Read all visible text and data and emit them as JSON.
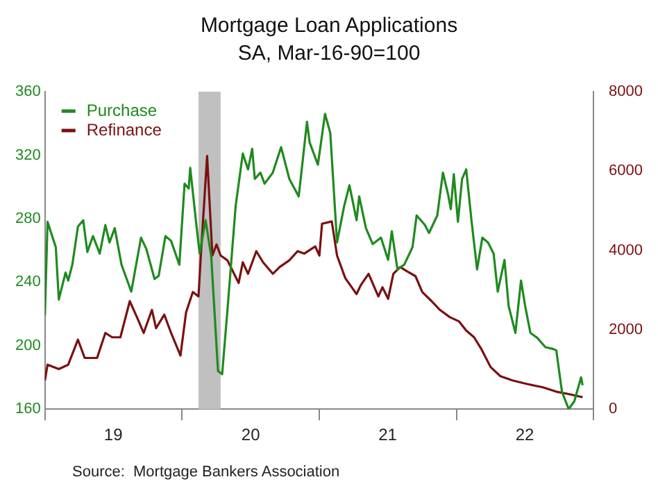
{
  "chart_data": {
    "type": "line",
    "title": "Mortgage Loan Applications",
    "subtitle": "SA, Mar-16-90=100",
    "annotations": [
      "Source:  Mortgage Bankers Association"
    ],
    "xlim": [
      "2019-01-01",
      "2023-01-01"
    ],
    "xticks": [
      {
        "value": "2019-01-01",
        "label": null
      },
      {
        "value": "2019-07-02",
        "label": "19"
      },
      {
        "value": "2020-01-01",
        "label": null
      },
      {
        "value": "2020-07-02",
        "label": "20"
      },
      {
        "value": "2021-01-01",
        "label": null
      },
      {
        "value": "2021-07-02",
        "label": "21"
      },
      {
        "value": "2022-01-01",
        "label": null
      },
      {
        "value": "2022-07-02",
        "label": "22"
      },
      {
        "value": "2023-01-01",
        "label": null
      }
    ],
    "ylim": [
      160,
      360
    ],
    "yticks": [
      160,
      200,
      240,
      280,
      320,
      360
    ],
    "y2lim": [
      0,
      8000
    ],
    "y2ticks": [
      0,
      2000,
      4000,
      6000,
      8000
    ],
    "legend": "top left",
    "bands": [
      {
        "axis": "x",
        "from": "2020-02-14",
        "to": "2020-04-13",
        "color": "#c0c0c0"
      }
    ],
    "series": [
      {
        "name": "Purchase",
        "color": "#1f8a1f",
        "x": [
          "2019-01-01",
          "2019-01-08",
          "2019-01-30",
          "2019-02-07",
          "2019-02-25",
          "2019-03-04",
          "2019-03-15",
          "2019-03-30",
          "2019-04-13",
          "2019-04-24",
          "2019-05-09",
          "2019-05-27",
          "2019-06-11",
          "2019-06-22",
          "2019-07-06",
          "2019-07-24",
          "2019-08-19",
          "2019-09-14",
          "2019-09-28",
          "2019-10-20",
          "2019-10-31",
          "2019-11-18",
          "2019-12-03",
          "2019-12-25",
          "2020-01-08",
          "2020-01-19",
          "2020-01-23",
          "2020-02-07",
          "2020-02-17",
          "2020-03-04",
          "2020-03-19",
          "2020-04-06",
          "2020-04-17",
          "2020-05-01",
          "2020-05-23",
          "2020-06-11",
          "2020-06-25",
          "2020-07-06",
          "2020-07-13",
          "2020-07-28",
          "2020-08-08",
          "2020-08-30",
          "2020-09-21",
          "2020-10-13",
          "2020-11-07",
          "2020-11-29",
          "2020-12-06",
          "2020-12-28",
          "2021-01-16",
          "2021-01-30",
          "2021-02-17",
          "2021-03-08",
          "2021-03-22",
          "2021-04-10",
          "2021-04-17",
          "2021-05-05",
          "2021-05-23",
          "2021-06-14",
          "2021-07-03",
          "2021-07-13",
          "2021-07-28",
          "2021-08-15",
          "2021-09-06",
          "2021-09-17",
          "2021-10-09",
          "2021-10-20",
          "2021-11-11",
          "2021-11-26",
          "2021-12-10",
          "2021-12-17",
          "2021-12-25",
          "2022-01-05",
          "2022-01-16",
          "2022-01-27",
          "2022-02-10",
          "2022-02-25",
          "2022-03-11",
          "2022-03-26",
          "2022-04-10",
          "2022-04-21",
          "2022-05-09",
          "2022-05-20",
          "2022-06-07",
          "2022-06-22",
          "2022-07-03",
          "2022-07-17",
          "2022-08-04",
          "2022-08-26",
          "2022-09-14",
          "2022-09-24",
          "2022-10-09",
          "2022-10-27",
          "2022-11-11",
          "2022-11-29",
          "2022-12-03"
        ],
        "values": [
          219,
          278,
          262,
          229,
          246,
          241,
          251,
          275,
          279,
          259,
          269,
          258,
          276,
          265,
          274,
          251,
          234,
          268,
          261,
          242,
          244,
          269,
          266,
          251,
          302,
          299,
          312,
          279,
          258,
          279,
          256,
          184,
          182,
          222,
          288,
          321,
          311,
          324,
          305,
          309,
          302,
          309,
          325,
          305,
          294,
          341,
          328,
          314,
          346,
          334,
          265,
          288,
          301,
          279,
          294,
          274,
          264,
          268,
          254,
          272,
          248,
          251,
          262,
          282,
          276,
          271,
          282,
          309,
          295,
          286,
          308,
          278,
          305,
          311,
          279,
          248,
          268,
          265,
          258,
          234,
          254,
          225,
          208,
          241,
          225,
          208,
          205,
          199,
          198,
          197,
          171,
          160,
          165,
          180,
          175
        ]
      },
      {
        "name": "Refinance",
        "color": "#7b1010",
        "axis": "y2",
        "x": [
          "2019-01-01",
          "2019-01-08",
          "2019-02-07",
          "2019-03-04",
          "2019-03-30",
          "2019-04-17",
          "2019-05-20",
          "2019-06-11",
          "2019-06-29",
          "2019-07-21",
          "2019-08-15",
          "2019-09-03",
          "2019-09-21",
          "2019-10-13",
          "2019-10-24",
          "2019-11-15",
          "2019-12-03",
          "2019-12-28",
          "2020-01-12",
          "2020-01-30",
          "2020-02-14",
          "2020-02-21",
          "2020-03-08",
          "2020-03-22",
          "2020-04-02",
          "2020-04-13",
          "2020-05-01",
          "2020-05-31",
          "2020-06-11",
          "2020-06-25",
          "2020-07-17",
          "2020-08-04",
          "2020-08-30",
          "2020-09-17",
          "2020-10-13",
          "2020-11-04",
          "2020-11-22",
          "2020-12-21",
          "2021-01-01",
          "2021-01-08",
          "2021-02-03",
          "2021-02-17",
          "2021-03-11",
          "2021-04-10",
          "2021-04-21",
          "2021-05-12",
          "2021-06-07",
          "2021-06-18",
          "2021-07-03",
          "2021-07-17",
          "2021-08-04",
          "2021-08-23",
          "2021-09-14",
          "2021-10-02",
          "2021-10-27",
          "2021-11-18",
          "2021-12-14",
          "2022-01-08",
          "2022-01-27",
          "2022-02-17",
          "2022-03-08",
          "2022-04-02",
          "2022-04-28",
          "2022-05-31",
          "2022-07-10",
          "2022-08-19",
          "2022-09-24",
          "2022-10-27",
          "2022-12-03"
        ],
        "values": [
          720,
          1120,
          1010,
          1120,
          1750,
          1290,
          1290,
          1920,
          1810,
          1810,
          2720,
          2320,
          1920,
          2500,
          2040,
          2380,
          1920,
          1350,
          2440,
          2950,
          2840,
          3980,
          6380,
          3870,
          4150,
          3870,
          3750,
          3180,
          3700,
          3410,
          3980,
          3700,
          3410,
          3580,
          3750,
          3980,
          3920,
          4100,
          3870,
          4670,
          4730,
          3870,
          3300,
          2900,
          3120,
          3410,
          2840,
          3070,
          2780,
          3410,
          3580,
          3470,
          3350,
          2950,
          2720,
          2500,
          2320,
          2210,
          1980,
          1810,
          1520,
          1060,
          830,
          720,
          630,
          550,
          440,
          380,
          300
        ]
      }
    ]
  }
}
